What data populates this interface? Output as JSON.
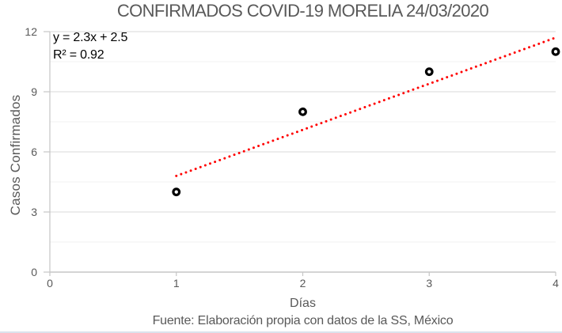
{
  "chart_data": {
    "type": "scatter",
    "title": "CONFIRMADOS COVID-19 MORELIA 24/03/2020",
    "xlabel": "Días",
    "ylabel": "Casos Confirmados",
    "footer": "Fuente: Elaboración propia con datos de la SS, México",
    "points": [
      {
        "x": 1,
        "y": 4
      },
      {
        "x": 2,
        "y": 8
      },
      {
        "x": 3,
        "y": 10
      },
      {
        "x": 4,
        "y": 11
      }
    ],
    "xlim": [
      0,
      4
    ],
    "ylim": [
      0,
      12
    ],
    "xticks": [
      0,
      1,
      2,
      3,
      4
    ],
    "yticks": [
      0,
      3,
      6,
      9,
      12
    ],
    "y_minor_interval": 1.5,
    "grid": "horizontal-only",
    "legend": "none",
    "marker": {
      "shape": "open-circle",
      "color": "#000000",
      "fill": "#ffffff"
    },
    "trendline": {
      "type": "linear",
      "slope": 2.3,
      "intercept": 2.5,
      "x_start": 1,
      "x_end": 4,
      "equation": "y = 2.3x + 2.5",
      "r_squared": 0.92,
      "r_squared_label": "R² = 0.92",
      "color": "#ff0000",
      "style": "dotted"
    },
    "colors": {
      "title_text": "#595959",
      "axis_text": "#595959",
      "axis_line": "#c6c6c6",
      "major_grid": "#d9d9d9",
      "minor_grid": "#f2f2f2",
      "bottom_border": "#dbe3ed"
    }
  }
}
